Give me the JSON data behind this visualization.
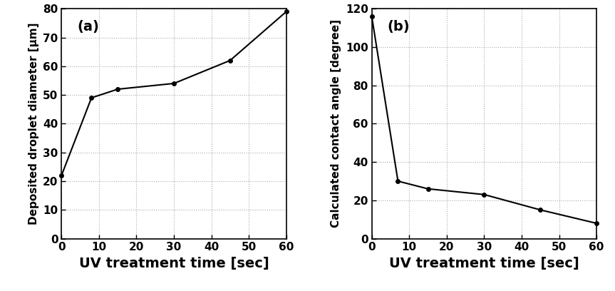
{
  "plot_a": {
    "x": [
      0,
      8,
      15,
      30,
      45,
      60
    ],
    "y": [
      22,
      49,
      52,
      54,
      62,
      79
    ],
    "xlabel": "UV treatment time [sec]",
    "ylabel": "Deposited droplet diameter [μm]",
    "label": "(a)",
    "xlim": [
      0,
      60
    ],
    "ylim": [
      0,
      80
    ],
    "xticks": [
      0,
      10,
      20,
      30,
      40,
      50,
      60
    ],
    "yticks": [
      0,
      10,
      20,
      30,
      40,
      50,
      60,
      70,
      80
    ]
  },
  "plot_b": {
    "x": [
      0,
      7,
      15,
      30,
      45,
      60
    ],
    "y": [
      116,
      30,
      26,
      23,
      15,
      8
    ],
    "xlabel": "UV treatment time [sec]",
    "ylabel": "Calculated contact angle [degree]",
    "label": "(b)",
    "xlim": [
      0,
      60
    ],
    "ylim": [
      0,
      120
    ],
    "xticks": [
      0,
      10,
      20,
      30,
      40,
      50,
      60
    ],
    "yticks": [
      0,
      20,
      40,
      60,
      80,
      100,
      120
    ]
  },
  "line_color": "#000000",
  "marker": "o",
  "markersize": 4,
  "linewidth": 1.5,
  "grid_color": "#aaaaaa",
  "grid_linestyle": ":",
  "grid_linewidth": 0.8,
  "tick_fontsize": 11,
  "panel_label_fontsize": 14,
  "xlabel_fontsize": 14,
  "ylabel_fontsize": 11,
  "background_color": "#ffffff"
}
